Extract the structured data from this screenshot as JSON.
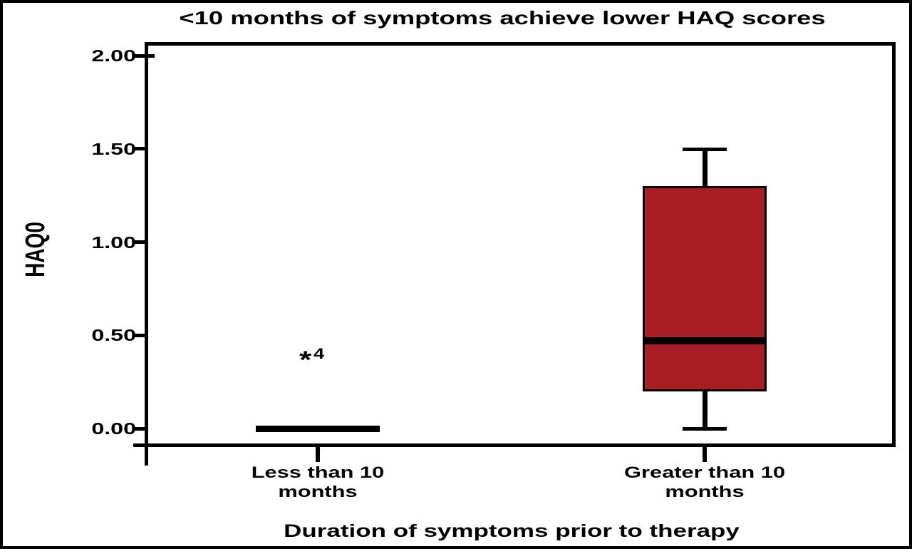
{
  "window": {
    "background": "#FFFFFF",
    "border_color": "#000000"
  },
  "chart_data": {
    "type": "boxplot",
    "title": "<10 months of symptoms achieve lower HAQ scores",
    "xlabel": "Duration of symptoms prior to therapy",
    "ylabel": "HAQ0",
    "legend": "none",
    "grid": "off",
    "y_axis": {
      "min": 0,
      "max": 2,
      "ticks": [
        {
          "label": "2.00",
          "value": 2.0
        },
        {
          "label": "1.50",
          "value": 1.5
        },
        {
          "label": "1.00",
          "value": 1.0
        },
        {
          "label": "0.50",
          "value": 0.5
        },
        {
          "label": "0.00",
          "value": 0.0
        }
      ]
    },
    "categories": [
      {
        "label": "Less than 10 months",
        "line1": "Less than 10",
        "line2": "months"
      },
      {
        "label": "Greater than 10 months",
        "line1": "Greater than 10",
        "line2": "months"
      }
    ],
    "series": [
      {
        "name": "Less than 10 months",
        "min": 0.0,
        "q1": 0.0,
        "median": 0.0,
        "q3": 0.0,
        "max": 0.0,
        "outliers": [
          {
            "value": 0.375,
            "case_label": "4"
          }
        ]
      },
      {
        "name": "Greater than 10 months",
        "min": 0.0,
        "q1": 0.2,
        "median": 0.47,
        "q3": 1.3,
        "max": 1.5,
        "outliers": []
      }
    ],
    "colors": {
      "box_fill": "#A81E24",
      "box_border": "#000000",
      "line": "#000000"
    }
  }
}
